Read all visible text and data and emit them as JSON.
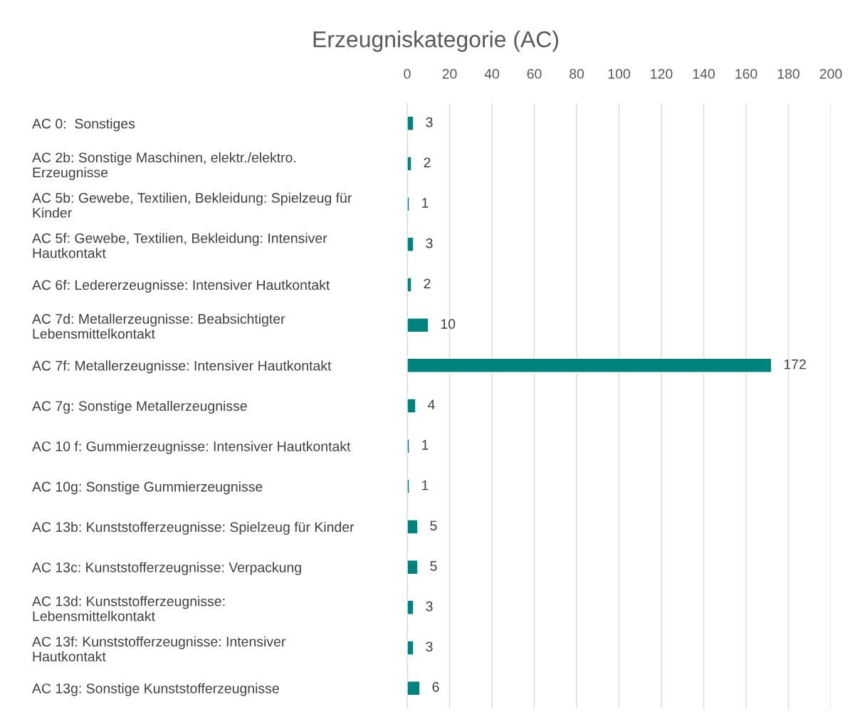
{
  "chart_data": {
    "type": "bar",
    "orientation": "horizontal",
    "title": "Erzeugniskategorie (AC)",
    "categories": [
      "AC 0:  Sonstiges",
      "AC 2b: Sonstige Maschinen, elektr./elektro.\nErzeugnisse",
      "AC 5b: Gewebe, Textilien, Bekleidung: Spielzeug für\nKinder",
      "AC 5f: Gewebe, Textilien, Bekleidung: Intensiver\nHautkontakt",
      "AC 6f: Ledererzeugnisse: Intensiver Hautkontakt",
      "AC 7d: Metallerzeugnisse: Beabsichtigter\nLebensmittelkontakt",
      "AC 7f: Metallerzeugnisse: Intensiver Hautkontakt",
      "AC 7g: Sonstige Metallerzeugnisse",
      "AC 10 f: Gummierzeugnisse: Intensiver Hautkontakt",
      "AC 10g: Sonstige Gummierzeugnisse",
      "AC 13b: Kunststofferzeugnisse: Spielzeug für Kinder",
      "AC 13c: Kunststofferzeugnisse: Verpackung",
      "AC 13d: Kunststofferzeugnisse:\nLebensmittelkontakt",
      "AC 13f: Kunststofferzeugnisse: Intensiver\nHautkontakt",
      "AC 13g: Sonstige Kunststofferzeugnisse"
    ],
    "values": [
      3,
      2,
      1,
      3,
      2,
      10,
      172,
      4,
      1,
      1,
      5,
      5,
      3,
      3,
      6
    ],
    "color": "#00827f",
    "xlim": [
      0,
      200
    ],
    "xticks": [
      0,
      20,
      40,
      60,
      80,
      100,
      120,
      140,
      160,
      180,
      200
    ],
    "grid": "x",
    "data_labels": true
  }
}
